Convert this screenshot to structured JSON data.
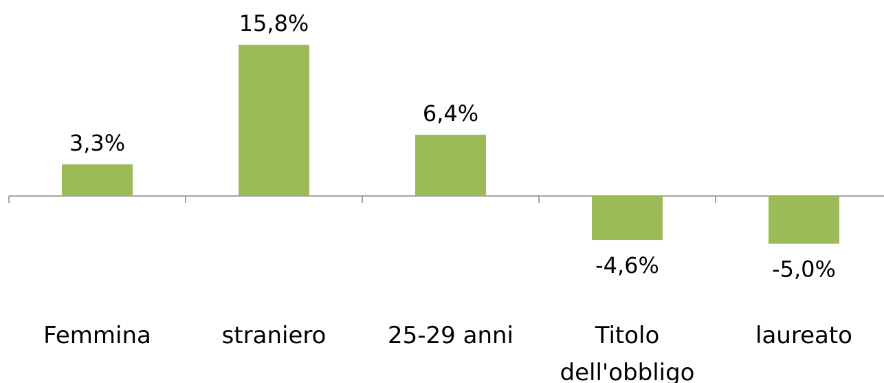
{
  "chart_data": {
    "type": "bar",
    "categories": [
      "Femmina",
      "straniero",
      "25-29 anni",
      "Titolo dell'obbligo",
      "laureato"
    ],
    "values": [
      3.3,
      15.8,
      6.4,
      -4.6,
      -5.0
    ],
    "value_labels": [
      "3,3%",
      "15,8%",
      "6,4%",
      "-4,6%",
      "-5,0%"
    ],
    "color": "#9bbb59"
  }
}
